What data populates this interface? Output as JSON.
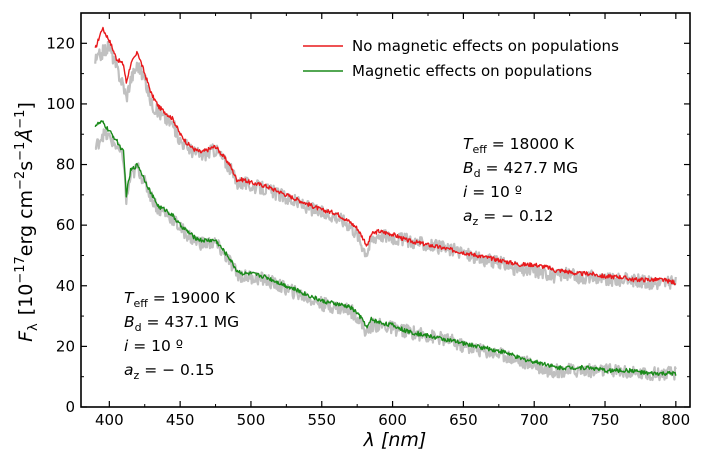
{
  "chart_data": {
    "type": "line",
    "xlabel": "λ [nm]",
    "ylabel": "F_λ [10^-17 erg cm^-2 s^-1 Å^-1]",
    "ylabel_parts": {
      "prefix": "F",
      "sub": "λ",
      "bracket_open": "[10",
      "exp1": "−17",
      "unit_mid": "erg cm",
      "exp2": "−2",
      "unit_s": "s",
      "exp3": "−1",
      "unit_A": "Å",
      "exp4": "−1",
      "bracket_close": "]"
    },
    "xlim": [
      380,
      810
    ],
    "ylim": [
      0,
      130
    ],
    "xticks": [
      400,
      450,
      500,
      550,
      600,
      650,
      700,
      750,
      800
    ],
    "yticks": [
      0,
      20,
      40,
      60,
      80,
      100,
      120
    ],
    "x": [
      390,
      395,
      400,
      405,
      410,
      412,
      415,
      420,
      425,
      430,
      435,
      440,
      445,
      450,
      455,
      460,
      465,
      470,
      475,
      480,
      485,
      490,
      495,
      500,
      510,
      520,
      530,
      540,
      550,
      560,
      570,
      575,
      580,
      582,
      585,
      590,
      600,
      610,
      620,
      630,
      640,
      650,
      660,
      670,
      680,
      690,
      700,
      710,
      715,
      720,
      730,
      740,
      750,
      760,
      770,
      780,
      790,
      800
    ],
    "series": [
      {
        "name": "No magnetic effects on populations",
        "color": "#e8191c",
        "values": [
          118,
          125,
          121,
          115,
          113,
          107,
          113,
          117,
          110,
          103,
          99,
          97,
          95,
          90,
          87,
          85,
          84,
          85,
          86,
          83,
          80,
          75,
          75,
          74,
          73,
          71,
          69,
          67,
          65,
          64,
          61,
          59,
          55,
          53,
          57,
          58,
          57,
          55,
          54,
          53,
          52,
          51,
          50,
          49,
          48,
          47,
          47,
          46,
          45,
          45,
          44,
          44,
          43,
          43,
          42,
          42,
          42,
          41
        ]
      },
      {
        "name": "Magnetic effects on populations",
        "color": "#1a8a1a",
        "values": [
          93,
          94,
          91,
          88,
          84,
          70,
          78,
          80,
          75,
          70,
          66,
          65,
          63,
          60,
          58,
          56,
          55,
          55,
          55,
          52,
          49,
          45,
          44,
          44,
          43,
          41,
          39,
          37,
          35,
          34,
          33,
          31,
          28,
          26,
          29,
          28,
          27,
          25,
          24,
          23,
          22,
          21,
          20,
          19,
          18,
          16,
          15,
          14,
          13,
          13,
          13,
          13,
          12,
          12,
          12,
          11,
          11,
          11
        ]
      },
      {
        "name": "",
        "color": "#c0c0c0",
        "values": [
          114,
          117,
          119,
          112,
          106,
          102,
          108,
          113,
          108,
          100,
          97,
          95,
          93,
          88,
          86,
          84,
          83,
          84,
          85,
          82,
          79,
          74,
          74,
          73,
          72,
          70,
          68,
          66,
          64,
          63,
          60,
          57,
          52,
          51,
          55,
          57,
          56,
          55,
          54,
          53,
          52,
          51,
          49,
          48,
          47,
          45,
          45,
          44,
          43,
          44,
          43,
          43,
          42,
          42,
          42,
          41,
          41,
          41
        ]
      },
      {
        "name": "",
        "color": "#c0c0c0",
        "values": [
          85,
          90,
          89,
          86,
          82,
          68,
          76,
          79,
          74,
          69,
          65,
          64,
          62,
          59,
          57,
          55,
          54,
          54,
          54,
          51,
          48,
          44,
          43,
          43,
          42,
          40,
          38,
          36,
          34,
          33,
          32,
          30,
          26,
          24,
          27,
          27,
          26,
          25,
          24,
          23,
          22,
          20,
          19,
          18,
          17,
          15,
          14,
          12,
          12,
          12,
          12,
          12,
          12,
          12,
          11,
          11,
          11,
          11
        ]
      }
    ],
    "legend": {
      "placement": "top-right",
      "entries": [
        "No magnetic effects on populations",
        "Magnetic effects on populations"
      ]
    },
    "annotations": [
      {
        "name": "upper",
        "lines": [
          {
            "sym": "T",
            "sub": "eff",
            "rest": " = 18000 K"
          },
          {
            "sym": "B",
            "sub": "d",
            "rest": " = 427.7 MG"
          },
          {
            "sym": "i",
            "sub": "",
            "rest": " = 10 º"
          },
          {
            "sym": "a",
            "sub": "z",
            "rest": " = − 0.12"
          }
        ]
      },
      {
        "name": "lower",
        "lines": [
          {
            "sym": "T",
            "sub": "eff",
            "rest": " = 19000 K"
          },
          {
            "sym": "B",
            "sub": "d",
            "rest": " = 437.1 MG"
          },
          {
            "sym": "i",
            "sub": "",
            "rest": " = 10 º"
          },
          {
            "sym": "a",
            "sub": "z",
            "rest": " = − 0.15"
          }
        ]
      }
    ],
    "grid": false
  }
}
